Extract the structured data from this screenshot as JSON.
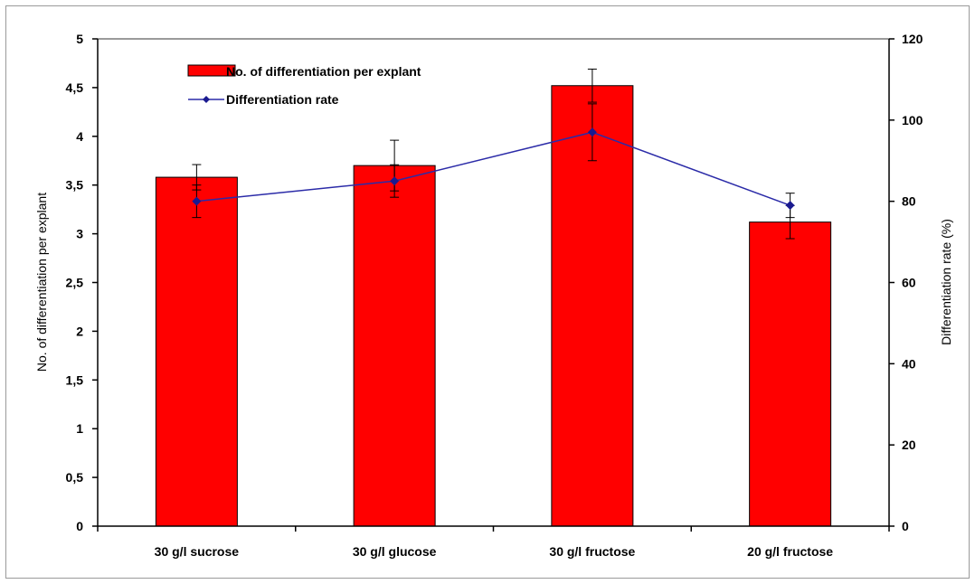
{
  "chart_data": {
    "type": "bar",
    "categories": [
      "30 g/l sucrose",
      "30 g/l glucose",
      "30 g/l fructose",
      "20 g/l fructose"
    ],
    "series": [
      {
        "name": "No. of differentiation per explant",
        "type": "bar",
        "axis": "left",
        "values": [
          3.58,
          3.7,
          4.52,
          3.12
        ],
        "error": [
          0.13,
          0.26,
          0.17,
          0.17
        ],
        "color": "#ff0000"
      },
      {
        "name": "Differentiation rate",
        "type": "line",
        "axis": "right",
        "values": [
          80,
          85,
          97,
          79
        ],
        "error": [
          4,
          4,
          7,
          3
        ],
        "color": "#2b2ba8"
      }
    ],
    "y_left": {
      "label": "No. of differentiation per explant",
      "ylim": [
        0,
        5
      ],
      "ticks": [
        "0",
        "0,5",
        "1",
        "1,5",
        "2",
        "2,5",
        "3",
        "3,5",
        "4",
        "4,5",
        "5"
      ]
    },
    "y_right": {
      "label": "Differentiation rate (%)",
      "ylim": [
        0,
        120
      ],
      "ticks": [
        "0",
        "20",
        "40",
        "60",
        "80",
        "100",
        "120"
      ]
    },
    "grid": false,
    "legend_position": "top-left"
  }
}
